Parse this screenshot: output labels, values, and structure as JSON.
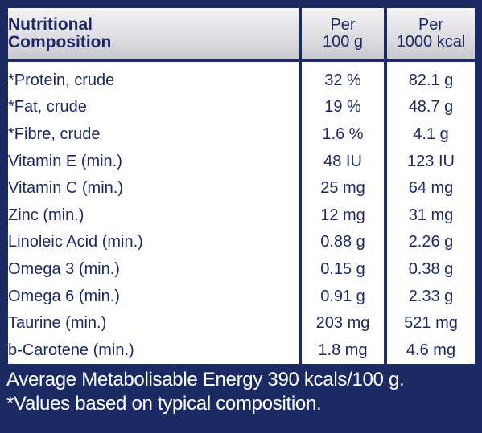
{
  "header": {
    "label_line1": "Nutritional",
    "label_line2": "Composition",
    "col1_line1": "Per",
    "col1_line2": "100 g",
    "col2_line1": "Per",
    "col2_line2": "1000 kcal"
  },
  "rows": [
    {
      "name": "*Protein, crude",
      "per100": "32 %",
      "per1000": "82.1 g"
    },
    {
      "name": "*Fat, crude",
      "per100": "19 %",
      "per1000": "48.7 g"
    },
    {
      "name": "*Fibre, crude",
      "per100": "1.6 %",
      "per1000": "4.1 g"
    },
    {
      "name": "Vitamin E (min.)",
      "per100": "48 IU",
      "per1000": "123 IU"
    },
    {
      "name": "Vitamin C (min.)",
      "per100": "25 mg",
      "per1000": "64 mg"
    },
    {
      "name": "Zinc (min.)",
      "per100": "12 mg",
      "per1000": "31 mg"
    },
    {
      "name": "Linoleic Acid (min.)",
      "per100": "0.88 g",
      "per1000": "2.26 g"
    },
    {
      "name": "Omega 3 (min.)",
      "per100": "0.15 g",
      "per1000": "0.38 g"
    },
    {
      "name": "Omega 6 (min.)",
      "per100": "0.91 g",
      "per1000": "2.33 g"
    },
    {
      "name": "Taurine (min.)",
      "per100": "203 mg",
      "per1000": "521 mg"
    },
    {
      "name": "b-Carotene (min.)",
      "per100": "1.8 mg",
      "per1000": "4.6 mg"
    }
  ],
  "footer": {
    "energy": "Average Metabolisable Energy 390 kcals/100 g.",
    "note": "*Values based on typical composition."
  },
  "colors": {
    "navy": "#1c2a64",
    "cell": "#ffffff",
    "header_silver": "#dedee3"
  }
}
